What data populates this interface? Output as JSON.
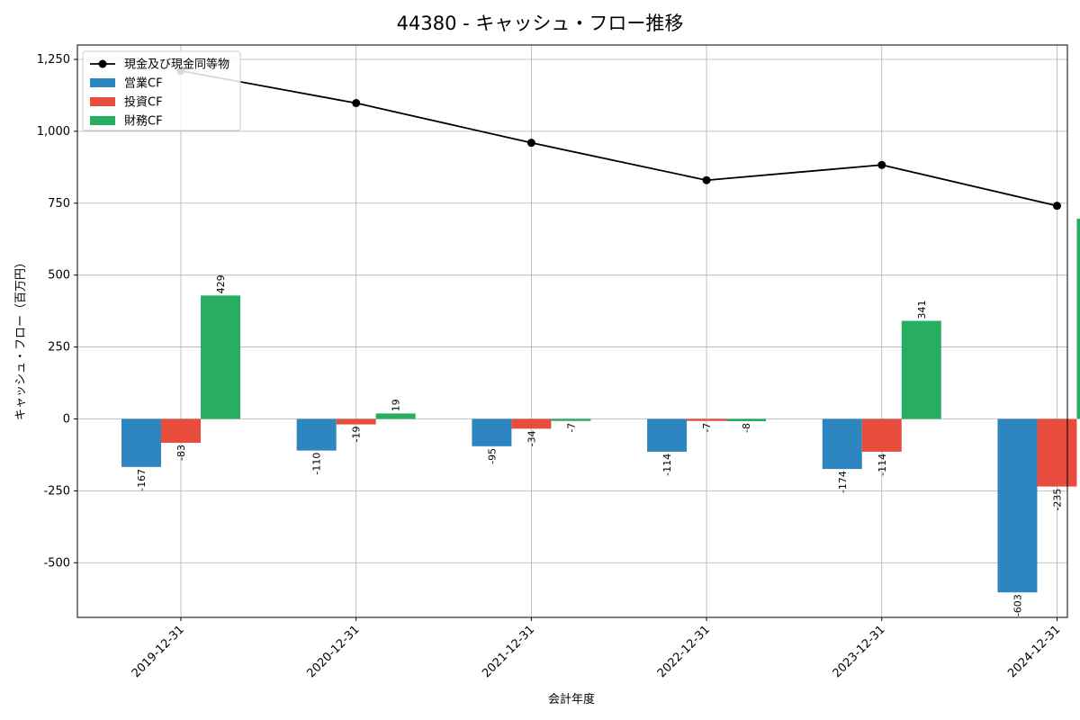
{
  "chart_data": {
    "type": "bar",
    "title": "44380 - キャッシュ・フロー推移",
    "xlabel": "会計年度",
    "ylabel": "キャッシュ・フロー（百万円）",
    "ylim": [
      -690,
      1300
    ],
    "yticks": [
      -500,
      -250,
      0,
      250,
      500,
      750,
      1000,
      1250
    ],
    "ytick_labels": [
      "-500",
      "-250",
      "0",
      "250",
      "500",
      "750",
      "1,000",
      "1,250"
    ],
    "grid": true,
    "legend_position": "top-left",
    "categories": [
      "2019-12-31",
      "2020-12-31",
      "2021-12-31",
      "2022-12-31",
      "2023-12-31",
      "2024-12-31"
    ],
    "series": [
      {
        "name": "営業CF",
        "kind": "bar",
        "color": "#2e86c1",
        "values": [
          -167,
          -110,
          -95,
          -114,
          -174,
          -603
        ]
      },
      {
        "name": "投資CF",
        "kind": "bar",
        "color": "#e74c3c",
        "values": [
          -83,
          -19,
          -34,
          -7,
          -114,
          -235
        ]
      },
      {
        "name": "財務CF",
        "kind": "bar",
        "color": "#27ae60",
        "values": [
          429,
          19,
          -7,
          -8,
          341,
          696
        ]
      },
      {
        "name": "現金及び現金同等物",
        "kind": "line",
        "color": "#000000",
        "values": [
          1210,
          1098,
          960,
          830,
          883,
          741
        ]
      }
    ]
  }
}
